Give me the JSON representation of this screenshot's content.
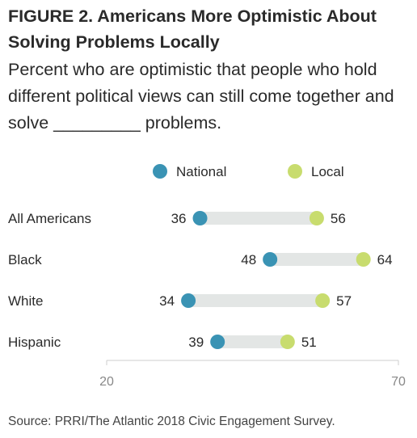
{
  "title": "FIGURE 2.  Americans More Optimistic About Solving Problems Locally",
  "subtitle": "Percent who are optimistic that people who hold different political views can still come together and solve _________  problems.",
  "source": "Source: PRRI/The Atlantic 2018 Civic Engagement Survey.",
  "colors": {
    "national": "#3a93b4",
    "local": "#c8dc6e",
    "bar": "#e3e6e5",
    "axis": "#cccccc",
    "text": "#2a2a2a"
  },
  "chart_data": {
    "type": "dot",
    "categories": [
      "All Americans",
      "Black",
      "White",
      "Hispanic"
    ],
    "series": [
      {
        "name": "National",
        "values": [
          36,
          48,
          34,
          39
        ]
      },
      {
        "name": "Local",
        "values": [
          56,
          64,
          57,
          51
        ]
      }
    ],
    "xlim": [
      20,
      70
    ],
    "xticks": [
      "20",
      "70"
    ],
    "legend": "top-center",
    "grid": false
  }
}
